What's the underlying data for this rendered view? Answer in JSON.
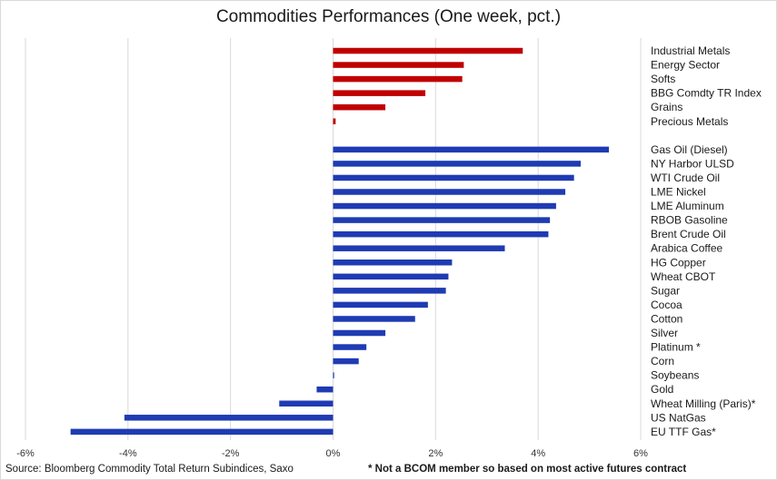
{
  "chart_data": {
    "type": "bar",
    "orientation": "horizontal",
    "title": "Commodities Performances (One week, pct.)",
    "xlim": [
      -6,
      6
    ],
    "x_ticks": [
      "-6%",
      "-4%",
      "-2%",
      "0%",
      "2%",
      "4%",
      "6%"
    ],
    "x_tick_values": [
      -6,
      -4,
      -2,
      0,
      2,
      4,
      6
    ],
    "grid": "vertical",
    "groups": [
      {
        "color": "#c00000",
        "categories": [
          "Industrial Metals",
          "Energy Sector",
          "Softs",
          "BBG Comdty TR Index",
          "Grains",
          "Precious Metals"
        ],
        "values": [
          3.7,
          2.55,
          2.52,
          1.8,
          1.02,
          0.05
        ]
      },
      {
        "color": "#1f3bb3",
        "categories": [
          "Gas Oil (Diesel)",
          "NY Harbor ULSD",
          "WTI Crude Oil",
          "LME Nickel",
          "LME Aluminum",
          "RBOB Gasoline",
          "Brent Crude Oil",
          "Arabica Coffee",
          "HG Copper",
          "Wheat CBOT",
          "Sugar",
          "Cocoa",
          "Cotton",
          "Silver",
          "Platinum *",
          "Corn",
          "Soybeans",
          "Gold",
          "Wheat Milling (Paris)*",
          "US NatGas",
          "EU TTF Gas*"
        ],
        "values": [
          5.38,
          4.83,
          4.7,
          4.53,
          4.35,
          4.23,
          4.2,
          3.35,
          2.32,
          2.25,
          2.2,
          1.85,
          1.6,
          1.02,
          0.65,
          0.5,
          0.02,
          -0.32,
          -1.05,
          -4.07,
          -5.12
        ]
      }
    ]
  },
  "footer": {
    "source": "Source: Bloomberg Commodity Total Return Subindices, Saxo",
    "note": "* Not a BCOM member so based on most active futures contract"
  }
}
